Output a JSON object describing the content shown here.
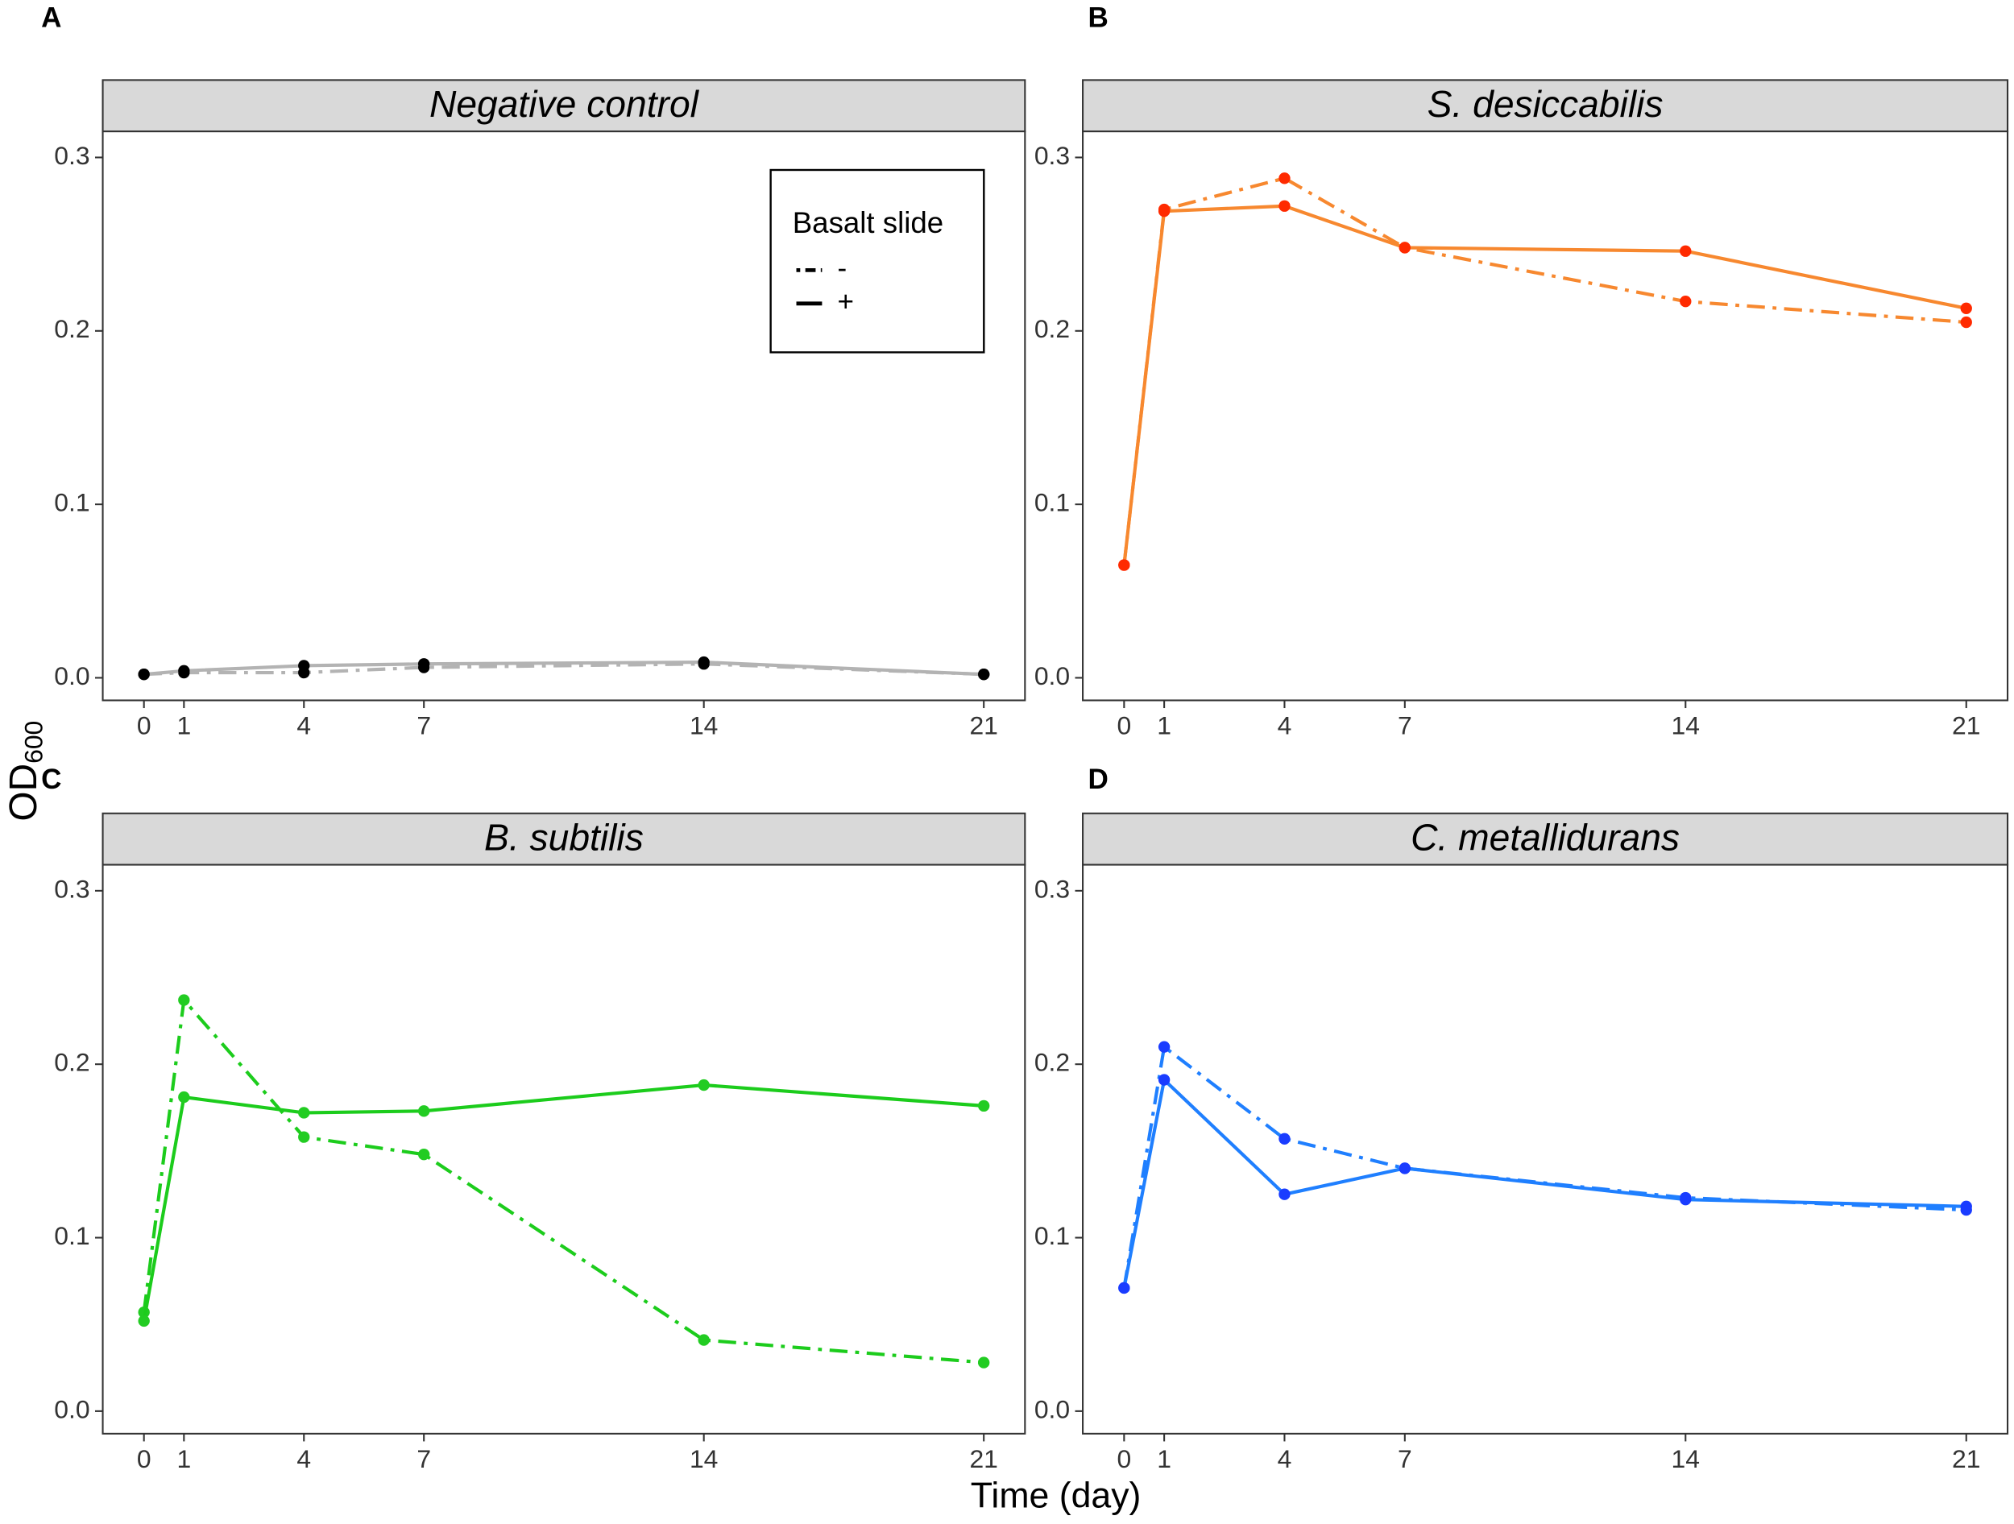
{
  "ylabel": "OD",
  "ylabel_sub": "600",
  "xlabel": "Time (day)",
  "legend_title": "Basalt slide",
  "chart_data": [
    {
      "type": "line",
      "panel": "A",
      "title": "Negative control",
      "x": [
        0,
        1,
        4,
        7,
        14,
        21
      ],
      "xlim": [
        -1.03,
        22.03
      ],
      "xticks": [
        0,
        1,
        4,
        7,
        14,
        21
      ],
      "ylim": [
        -0.013,
        0.315
      ],
      "yticks": [
        {
          "value": 0,
          "label": "0.0"
        },
        0.1,
        0.2,
        0.3
      ],
      "legend": "top-right",
      "grid": false,
      "series": [
        {
          "name": "-",
          "linestyle": "dashdot",
          "color": "#b3b3b3",
          "marker_color": "#000000",
          "values": [
            0.002,
            0.003,
            0.003,
            0.006,
            0.008,
            0.002
          ]
        },
        {
          "name": "+",
          "linestyle": "solid",
          "color": "#b3b3b3",
          "marker_color": "#000000",
          "values": [
            0.002,
            0.004,
            0.007,
            0.008,
            0.009,
            0.002
          ]
        }
      ]
    },
    {
      "type": "line",
      "panel": "B",
      "title": "S. desiccabilis",
      "x": [
        0,
        1,
        4,
        7,
        14,
        21
      ],
      "xlim": [
        -1.03,
        22.03
      ],
      "xticks": [
        0,
        1,
        4,
        7,
        14,
        21
      ],
      "ylim": [
        -0.013,
        0.315
      ],
      "yticks": [
        {
          "value": 0,
          "label": "0.0"
        },
        0.1,
        0.2,
        0.3
      ],
      "grid": false,
      "series": [
        {
          "name": "-",
          "linestyle": "dashdot",
          "color": "#f7882f",
          "marker_color": "#ff2a00",
          "values": [
            0.065,
            0.27,
            0.288,
            0.248,
            0.217,
            0.205
          ]
        },
        {
          "name": "+",
          "linestyle": "solid",
          "color": "#f7882f",
          "marker_color": "#ff2a00",
          "values": [
            0.065,
            0.269,
            0.272,
            0.248,
            0.246,
            0.213
          ]
        }
      ]
    },
    {
      "type": "line",
      "panel": "C",
      "title": "B. subtilis",
      "x": [
        0,
        1,
        4,
        7,
        14,
        21
      ],
      "xlim": [
        -1.03,
        22.03
      ],
      "xticks": [
        0,
        1,
        4,
        7,
        14,
        21
      ],
      "ylim": [
        -0.013,
        0.315
      ],
      "yticks": [
        {
          "value": 0,
          "label": "0.0"
        },
        0.1,
        0.2,
        0.3
      ],
      "grid": false,
      "series": [
        {
          "name": "-",
          "linestyle": "dashdot",
          "color": "#1ccc1c",
          "marker_color": "#22cc22",
          "values": [
            0.057,
            0.237,
            0.158,
            0.148,
            0.041,
            0.028
          ]
        },
        {
          "name": "+",
          "linestyle": "solid",
          "color": "#1ccc1c",
          "marker_color": "#22cc22",
          "values": [
            0.052,
            0.181,
            0.172,
            0.173,
            0.188,
            0.176
          ]
        }
      ]
    },
    {
      "type": "line",
      "panel": "D",
      "title": "C. metallidurans",
      "x": [
        0,
        1,
        4,
        7,
        14,
        21
      ],
      "xlim": [
        -1.03,
        22.03
      ],
      "xticks": [
        0,
        1,
        4,
        7,
        14,
        21
      ],
      "ylim": [
        -0.013,
        0.315
      ],
      "yticks": [
        {
          "value": 0,
          "label": "0.0"
        },
        0.1,
        0.2,
        0.3
      ],
      "grid": false,
      "series": [
        {
          "name": "-",
          "linestyle": "dashdot",
          "color": "#1f7fff",
          "marker_color": "#1a3cff",
          "values": [
            0.071,
            0.21,
            0.157,
            0.14,
            0.123,
            0.116
          ]
        },
        {
          "name": "+",
          "linestyle": "solid",
          "color": "#1f7fff",
          "marker_color": "#1a3cff",
          "values": [
            0.071,
            0.191,
            0.125,
            0.14,
            0.122,
            0.118
          ]
        }
      ]
    }
  ]
}
